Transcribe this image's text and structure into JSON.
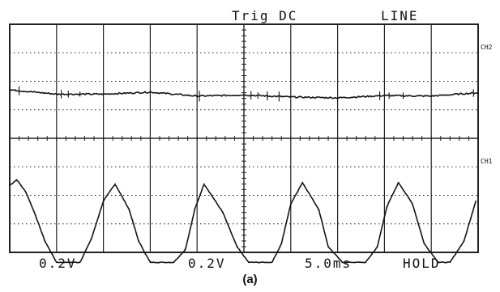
{
  "header": {
    "trigger": "Trig DC",
    "source": "LINE"
  },
  "footer": {
    "ch1_scale": "0.2V",
    "ch2_scale": "0.2V",
    "timebase": "5.0ms",
    "mode": "HOLD"
  },
  "channels": {
    "ch1": "CH1",
    "ch2": "CH2"
  },
  "caption": "(a)",
  "colors": {
    "trace": "#141414",
    "grid": "#222222",
    "background": "#ffffff"
  },
  "chart_data": {
    "type": "line",
    "grid": true,
    "x_divisions": 10,
    "y_divisions": 8,
    "xlim": [
      0,
      10
    ],
    "series": [
      {
        "name": "CH1",
        "x": [
          0,
          0.15,
          0.35,
          0.55,
          0.75,
          1.0,
          1.25,
          1.5,
          1.75,
          2.0,
          2.25,
          2.55,
          2.75,
          3.0,
          3.2,
          3.5,
          3.75,
          3.95,
          4.15,
          4.55,
          4.85,
          5.1,
          5.35,
          5.6,
          5.8,
          6.0,
          6.25,
          6.6,
          6.8,
          7.1,
          7.35,
          7.6,
          7.85,
          8.05,
          8.3,
          8.6,
          8.85,
          9.15,
          9.4,
          9.7,
          9.95
        ],
        "y": [
          2.35,
          2.55,
          2.1,
          1.3,
          0.4,
          -0.35,
          -0.35,
          -0.35,
          0.5,
          1.8,
          2.4,
          1.5,
          0.4,
          -0.35,
          -0.35,
          -0.35,
          0.1,
          1.5,
          2.4,
          1.4,
          0.2,
          -0.35,
          -0.35,
          -0.35,
          0.3,
          1.7,
          2.45,
          1.5,
          0.2,
          -0.35,
          -0.35,
          -0.35,
          0.2,
          1.6,
          2.45,
          1.7,
          0.3,
          -0.35,
          -0.35,
          0.4,
          1.8
        ]
      },
      {
        "name": "CH2",
        "x": [
          0,
          1,
          2,
          3,
          4,
          5,
          6,
          7,
          8,
          9,
          10
        ],
        "y": [
          5.7,
          5.55,
          5.55,
          5.62,
          5.48,
          5.52,
          5.45,
          5.42,
          5.5,
          5.48,
          5.6
        ]
      }
    ]
  }
}
